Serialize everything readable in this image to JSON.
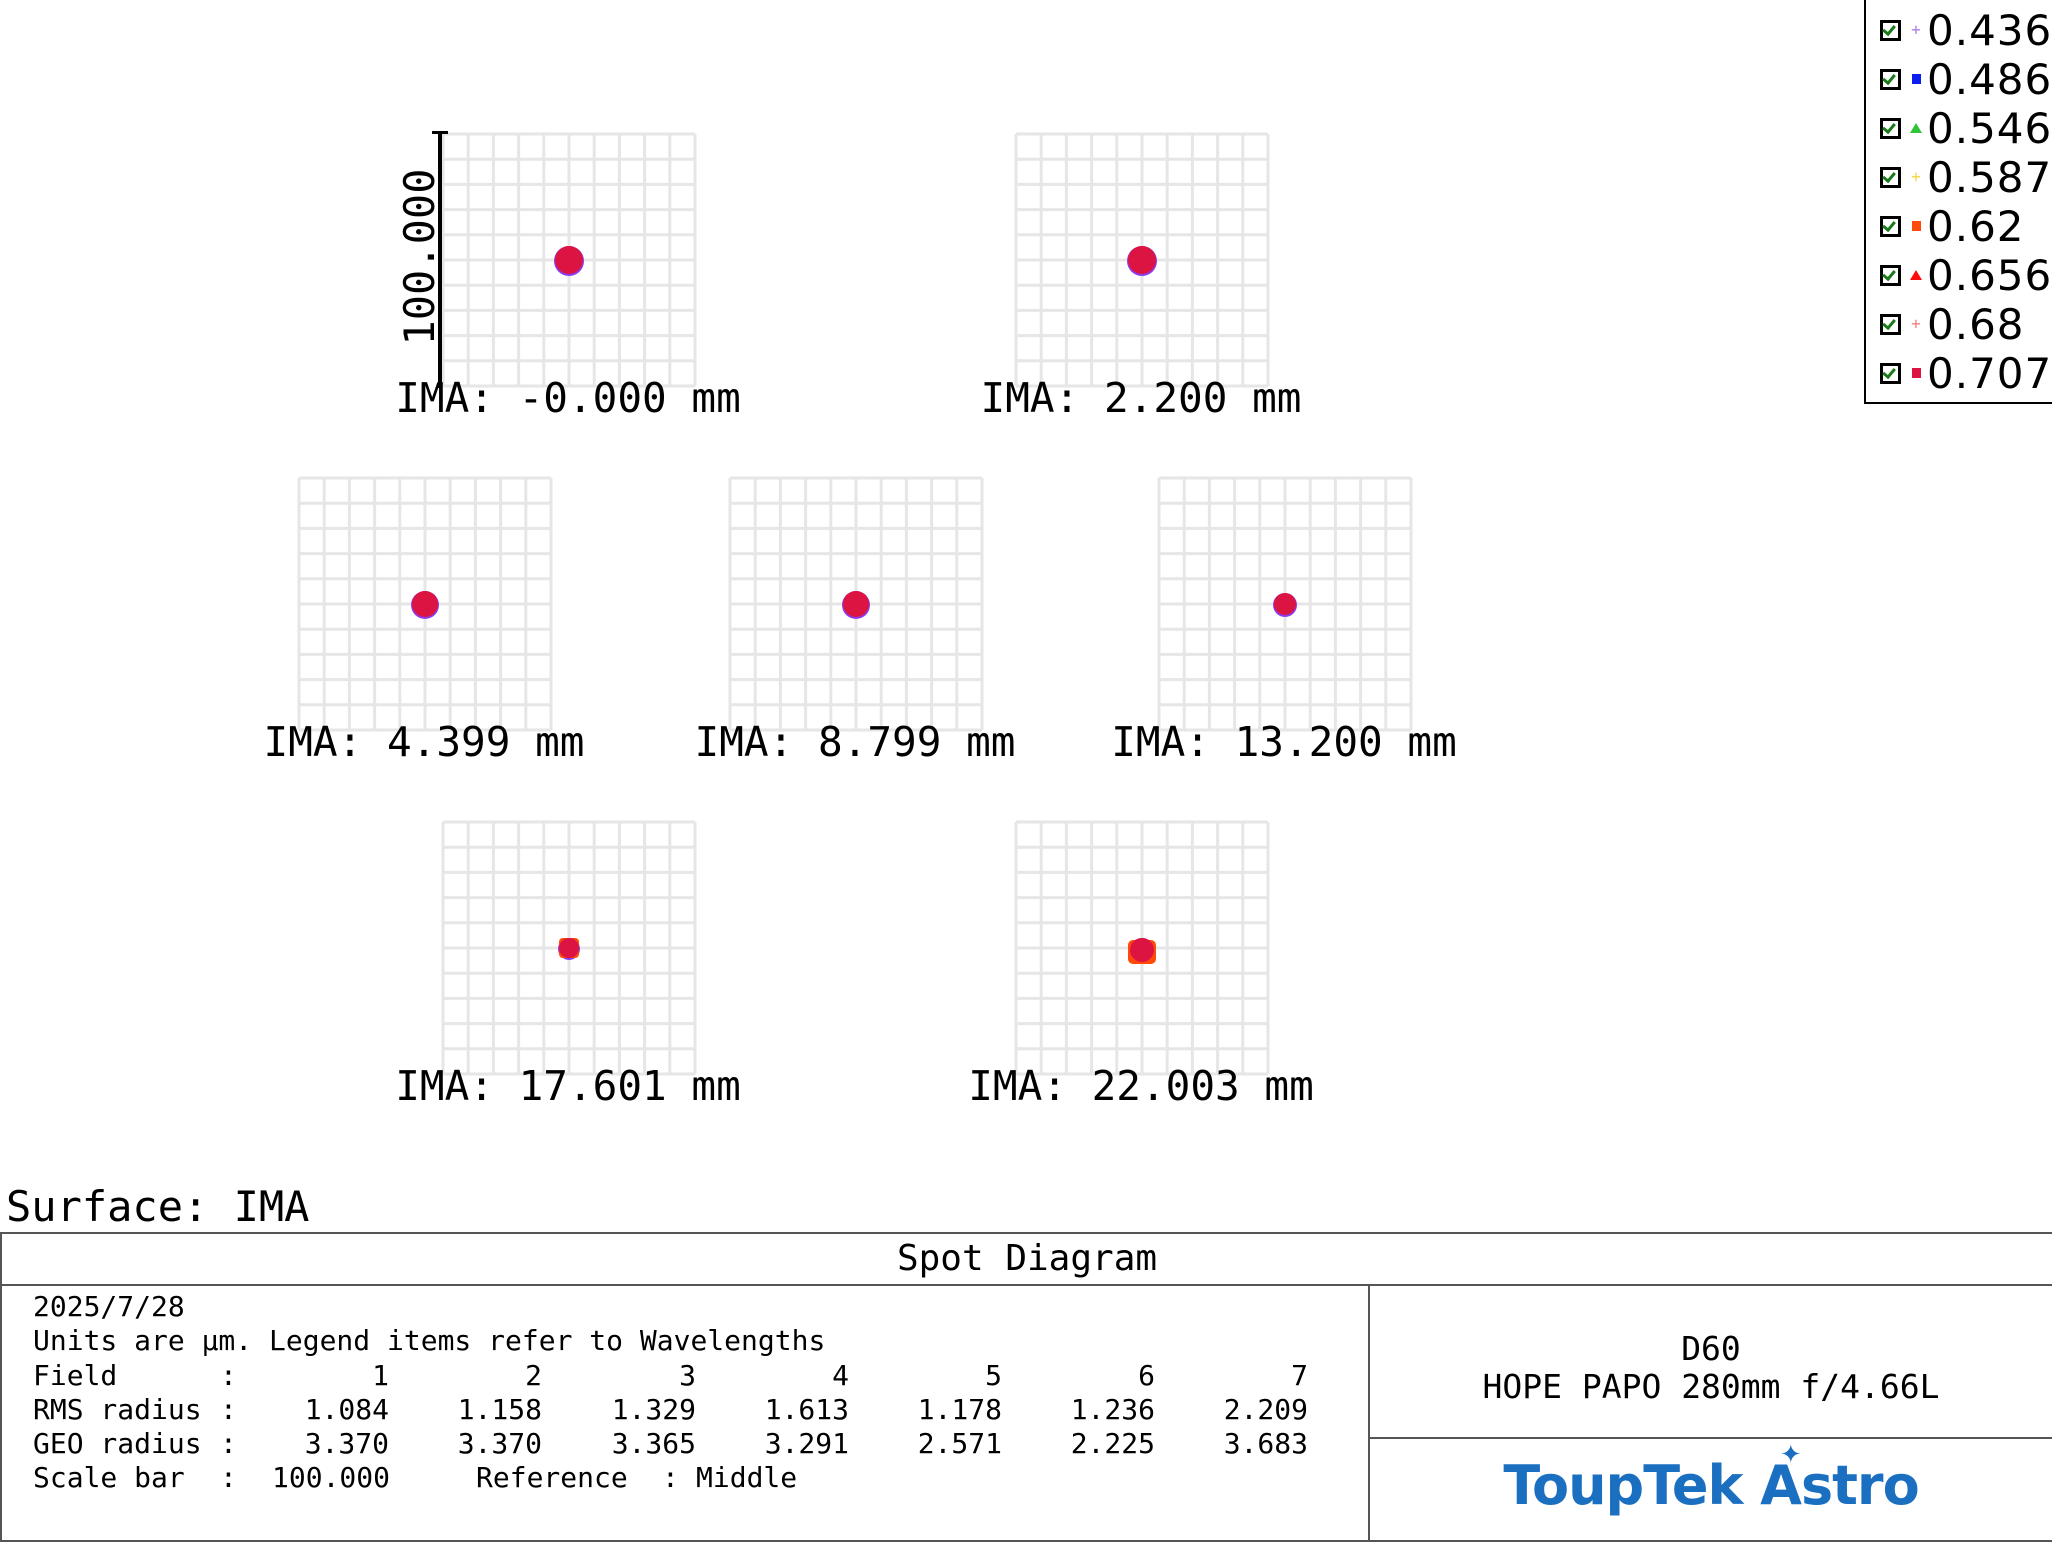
{
  "legend": {
    "title": "",
    "items": [
      {
        "label": "0.436",
        "color": "#b07fe0",
        "marker": "plus",
        "checked": true
      },
      {
        "label": "0.486",
        "color": "#0a1ef0",
        "marker": "square",
        "checked": true
      },
      {
        "label": "0.546",
        "color": "#2fc43a",
        "marker": "triangle",
        "checked": true
      },
      {
        "label": "0.587",
        "color": "#f2d640",
        "marker": "plus",
        "checked": true
      },
      {
        "label": "0.62",
        "color": "#ff4a0a",
        "marker": "square",
        "checked": true
      },
      {
        "label": "0.656",
        "color": "#ff0a0a",
        "marker": "triangle",
        "checked": true
      },
      {
        "label": "0.68",
        "color": "#f08080",
        "marker": "plus",
        "checked": true
      },
      {
        "label": "0.707",
        "color": "#dc1442",
        "marker": "square",
        "checked": true
      }
    ]
  },
  "scale_bar_label": "100.000",
  "fields": [
    {
      "label": "IMA: -0.000 mm"
    },
    {
      "label": "IMA: 2.200 mm"
    },
    {
      "label": "IMA: 4.399 mm"
    },
    {
      "label": "IMA: 8.799 mm"
    },
    {
      "label": "IMA: 13.200 mm"
    },
    {
      "label": "IMA: 17.601 mm"
    },
    {
      "label": "IMA: 22.003 mm"
    }
  ],
  "surface_label": "Surface: IMA",
  "info": {
    "title": "Spot Diagram",
    "date": "2025/7/28",
    "units_note": "Units are µm. Legend items refer to Wavelengths",
    "field_row": {
      "label": "Field",
      "sep": ":",
      "values": [
        "1",
        "2",
        "3",
        "4",
        "5",
        "6",
        "7"
      ]
    },
    "rms_row": {
      "label": "RMS radius",
      "sep": ":",
      "values": [
        "1.084",
        "1.158",
        "1.329",
        "1.613",
        "1.178",
        "1.236",
        "2.209"
      ]
    },
    "geo_row": {
      "label": "GEO radius",
      "sep": ":",
      "values": [
        "3.370",
        "3.370",
        "3.365",
        "3.291",
        "2.571",
        "2.225",
        "3.683"
      ]
    },
    "scale_bar": {
      "label": "Scale bar",
      "sep": ":",
      "value": "100.000"
    },
    "reference": {
      "label": "Reference",
      "sep": ":",
      "value": "Middle"
    },
    "model_line1": "D60",
    "model_line2": "HOPE PAPO 280mm f/4.66L",
    "logo_text": "ToupTek Astro"
  },
  "colors": {
    "grid": "#e6e6e6",
    "spot_main": "#dc1442",
    "spot_under": "#8a3cf0",
    "logo": "#1b6fc0"
  }
}
